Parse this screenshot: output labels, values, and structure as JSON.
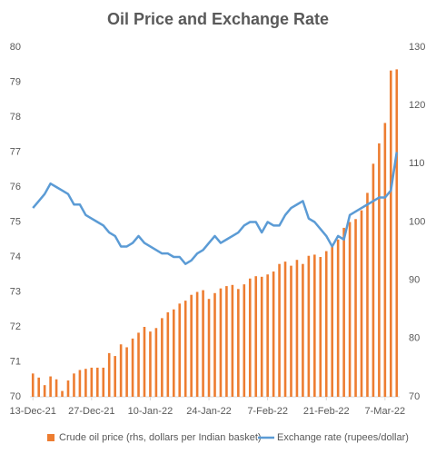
{
  "chart_data": {
    "type": "bar_line",
    "title": "Oil Price and Exchange Rate",
    "categories": [
      "13-Dec-21",
      null,
      null,
      null,
      null,
      null,
      null,
      null,
      null,
      null,
      "27-Dec-21",
      null,
      null,
      null,
      null,
      null,
      null,
      null,
      null,
      null,
      "10-Jan-22",
      null,
      null,
      null,
      null,
      null,
      null,
      null,
      null,
      null,
      "24-Jan-22",
      null,
      null,
      null,
      null,
      null,
      null,
      null,
      null,
      null,
      "7-Feb-22",
      null,
      null,
      null,
      null,
      null,
      null,
      null,
      null,
      null,
      "21-Feb-22",
      null,
      null,
      null,
      null,
      null,
      null,
      null,
      null,
      null,
      "7-Mar-22",
      null,
      null
    ],
    "ylim": [
      70,
      80
    ],
    "yticks": [
      70,
      71,
      72,
      73,
      74,
      75,
      76,
      77,
      78,
      79,
      80
    ],
    "y2lim": [
      70,
      130
    ],
    "y2ticks": [
      70,
      80,
      90,
      100,
      110,
      120,
      130
    ],
    "series": [
      {
        "name": "Crude oil price (rhs, dollars per Indian basket)",
        "color": "#ed7d31",
        "axis": "y2",
        "kind": "bar",
        "values": [
          74,
          73.3,
          72,
          73.5,
          73,
          71,
          72.8,
          74,
          74.6,
          74.8,
          75,
          75,
          75,
          77.5,
          77,
          79,
          78.5,
          80,
          81,
          82,
          81.2,
          81.8,
          83.5,
          84.5,
          85,
          86,
          86.5,
          87.5,
          88,
          88.3,
          86.8,
          87.8,
          88.6,
          89,
          89.2,
          88.5,
          89.3,
          90.3,
          90.7,
          90.6,
          91,
          91.5,
          92.8,
          93.2,
          92.5,
          93.5,
          92.8,
          94.2,
          94.4,
          94,
          95,
          96,
          97,
          99,
          100,
          100.5,
          102,
          105,
          110,
          113.5,
          117,
          126,
          126.2
        ]
      },
      {
        "name": "Exchange rate (rupees/dollar)",
        "color": "#5b9bd5",
        "axis": "y",
        "kind": "line",
        "values": [
          75.4,
          75.6,
          75.8,
          76.1,
          76.0,
          75.9,
          75.8,
          75.5,
          75.5,
          75.2,
          75.1,
          75.0,
          74.9,
          74.7,
          74.6,
          74.3,
          74.3,
          74.4,
          74.6,
          74.4,
          74.3,
          74.2,
          74.1,
          74.1,
          74.0,
          74.0,
          73.8,
          73.9,
          74.1,
          74.2,
          74.4,
          74.6,
          74.4,
          74.5,
          74.6,
          74.7,
          74.9,
          75.0,
          75.0,
          74.7,
          75.0,
          74.9,
          74.9,
          75.2,
          75.4,
          75.5,
          75.6,
          75.1,
          75.0,
          74.8,
          74.6,
          74.3,
          74.6,
          74.5,
          75.2,
          75.3,
          75.4,
          75.5,
          75.6,
          75.7,
          75.7,
          75.9,
          77.0
        ]
      }
    ]
  }
}
